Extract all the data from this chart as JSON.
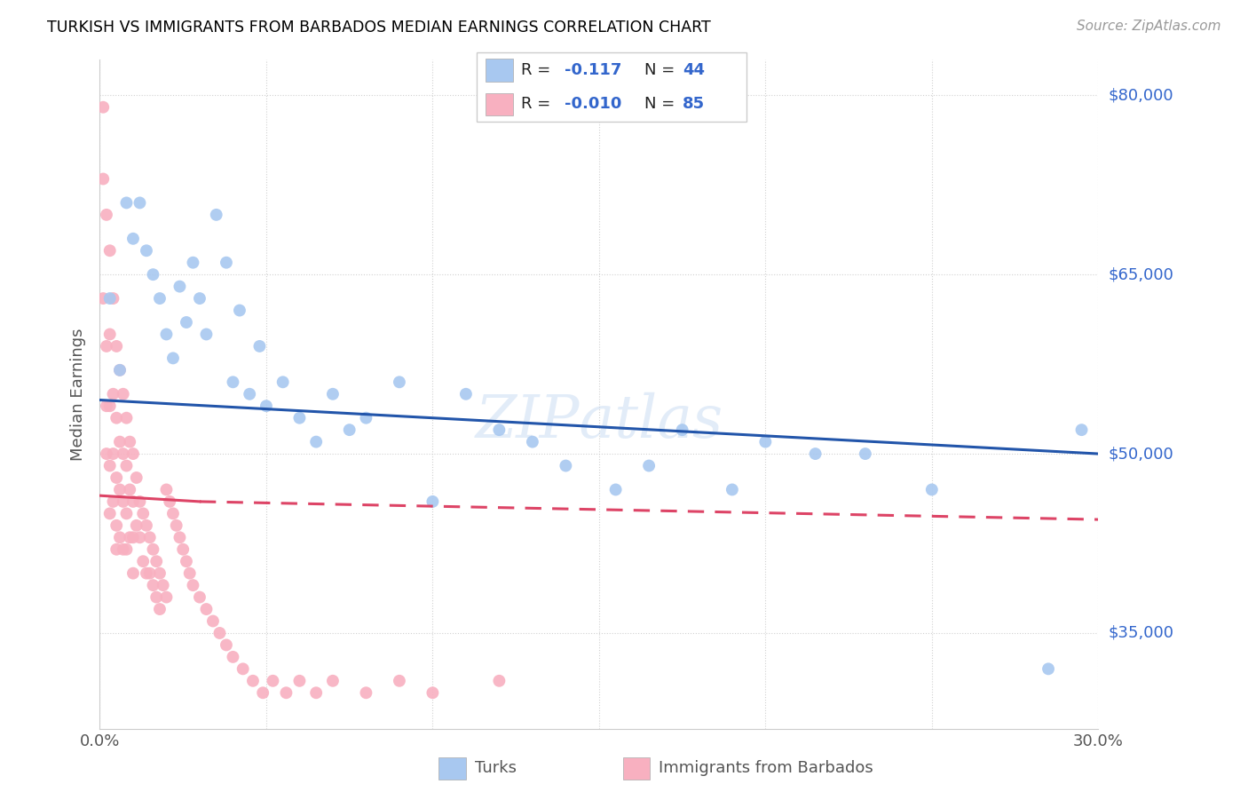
{
  "title": "TURKISH VS IMMIGRANTS FROM BARBADOS MEDIAN EARNINGS CORRELATION CHART",
  "source": "Source: ZipAtlas.com",
  "ylabel": "Median Earnings",
  "x_min": 0.0,
  "x_max": 0.3,
  "y_min": 27000,
  "y_max": 83000,
  "yticks": [
    35000,
    50000,
    65000,
    80000
  ],
  "ytick_labels": [
    "$35,000",
    "$50,000",
    "$65,000",
    "$80,000"
  ],
  "xticks": [
    0.0,
    0.05,
    0.1,
    0.15,
    0.2,
    0.25,
    0.3
  ],
  "xtick_labels": [
    "0.0%",
    "",
    "",
    "",
    "",
    "",
    "30.0%"
  ],
  "blue_color": "#A8C8F0",
  "pink_color": "#F8B0C0",
  "blue_line_color": "#2255AA",
  "pink_line_color": "#DD4466",
  "watermark": "ZIPatlas",
  "blue_line_x0": 0.0,
  "blue_line_x1": 0.3,
  "blue_line_y0": 54500,
  "blue_line_y1": 50000,
  "pink_line_solid_x0": 0.0,
  "pink_line_solid_x1": 0.03,
  "pink_line_solid_y0": 46500,
  "pink_line_solid_y1": 46000,
  "pink_line_dash_x0": 0.03,
  "pink_line_dash_x1": 0.3,
  "pink_line_dash_y0": 46000,
  "pink_line_dash_y1": 44500,
  "turks_x": [
    0.003,
    0.006,
    0.008,
    0.01,
    0.012,
    0.014,
    0.016,
    0.018,
    0.02,
    0.022,
    0.024,
    0.026,
    0.028,
    0.03,
    0.032,
    0.035,
    0.038,
    0.04,
    0.042,
    0.045,
    0.048,
    0.05,
    0.055,
    0.06,
    0.065,
    0.07,
    0.075,
    0.08,
    0.09,
    0.1,
    0.11,
    0.12,
    0.13,
    0.14,
    0.155,
    0.165,
    0.175,
    0.19,
    0.2,
    0.215,
    0.23,
    0.25,
    0.285,
    0.295
  ],
  "turks_y": [
    63000,
    57000,
    71000,
    68000,
    71000,
    67000,
    65000,
    63000,
    60000,
    58000,
    64000,
    61000,
    66000,
    63000,
    60000,
    70000,
    66000,
    56000,
    62000,
    55000,
    59000,
    54000,
    56000,
    53000,
    51000,
    55000,
    52000,
    53000,
    56000,
    46000,
    55000,
    52000,
    51000,
    49000,
    47000,
    49000,
    52000,
    47000,
    51000,
    50000,
    50000,
    47000,
    32000,
    52000
  ],
  "barbados_x": [
    0.001,
    0.001,
    0.001,
    0.002,
    0.002,
    0.002,
    0.002,
    0.003,
    0.003,
    0.003,
    0.003,
    0.003,
    0.004,
    0.004,
    0.004,
    0.004,
    0.005,
    0.005,
    0.005,
    0.005,
    0.005,
    0.006,
    0.006,
    0.006,
    0.006,
    0.007,
    0.007,
    0.007,
    0.007,
    0.008,
    0.008,
    0.008,
    0.008,
    0.009,
    0.009,
    0.009,
    0.01,
    0.01,
    0.01,
    0.01,
    0.011,
    0.011,
    0.012,
    0.012,
    0.013,
    0.013,
    0.014,
    0.014,
    0.015,
    0.015,
    0.016,
    0.016,
    0.017,
    0.017,
    0.018,
    0.018,
    0.019,
    0.02,
    0.02,
    0.021,
    0.022,
    0.023,
    0.024,
    0.025,
    0.026,
    0.027,
    0.028,
    0.03,
    0.032,
    0.034,
    0.036,
    0.038,
    0.04,
    0.043,
    0.046,
    0.049,
    0.052,
    0.056,
    0.06,
    0.065,
    0.07,
    0.08,
    0.09,
    0.1,
    0.12
  ],
  "barbados_y": [
    79000,
    73000,
    63000,
    70000,
    59000,
    54000,
    50000,
    67000,
    60000,
    54000,
    49000,
    45000,
    63000,
    55000,
    50000,
    46000,
    59000,
    53000,
    48000,
    44000,
    42000,
    57000,
    51000,
    47000,
    43000,
    55000,
    50000,
    46000,
    42000,
    53000,
    49000,
    45000,
    42000,
    51000,
    47000,
    43000,
    50000,
    46000,
    43000,
    40000,
    48000,
    44000,
    46000,
    43000,
    45000,
    41000,
    44000,
    40000,
    43000,
    40000,
    42000,
    39000,
    41000,
    38000,
    40000,
    37000,
    39000,
    47000,
    38000,
    46000,
    45000,
    44000,
    43000,
    42000,
    41000,
    40000,
    39000,
    38000,
    37000,
    36000,
    35000,
    34000,
    33000,
    32000,
    31000,
    30000,
    31000,
    30000,
    31000,
    30000,
    31000,
    30000,
    31000,
    30000,
    31000
  ]
}
